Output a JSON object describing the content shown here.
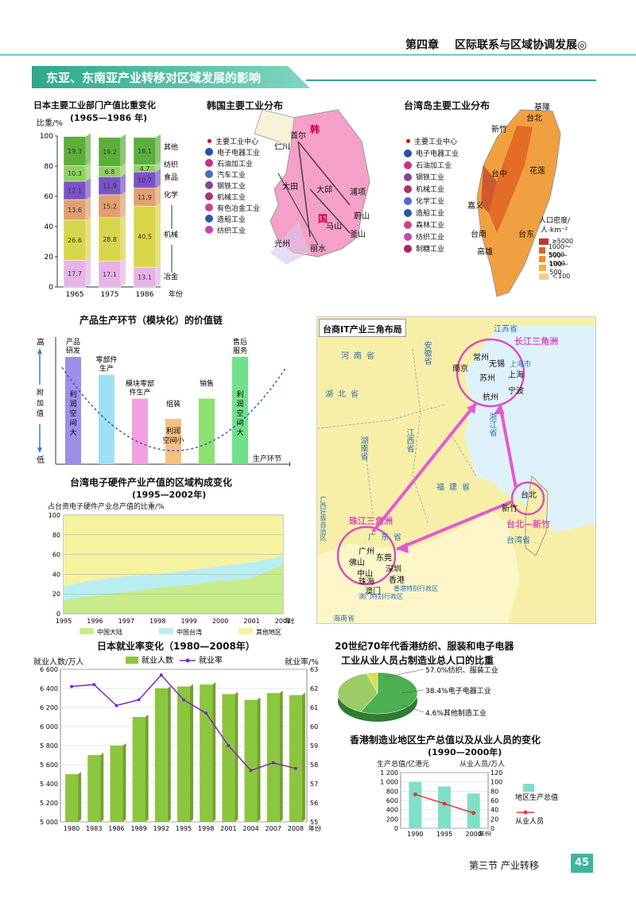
{
  "header": {
    "chapter": "第四章",
    "chapter_title": "区际联系与区域协调发展◎",
    "section_banner": "东亚、东南亚产业转移对区域发展的影响"
  },
  "footer": {
    "section": "第三节  产业转移",
    "page": "45"
  },
  "japan_industry_chart": {
    "title": "日本主要工业部门产值比重变化",
    "subtitle": "(1965—1986 年)",
    "ylabel": "比重/%",
    "xunit": "年份",
    "categories": [
      "1965",
      "1975",
      "1986"
    ],
    "layer_labels": [
      "冶金",
      "机械",
      "化学",
      "食品",
      "纺织",
      "其他"
    ],
    "layer_colors": [
      "#e6b3e6",
      "#d7d64a",
      "#e0a070",
      "#7a52c7",
      "#8fd060",
      "#5cae3a"
    ],
    "values": [
      [
        17.7,
        26.6,
        13.6,
        12.1,
        10.3,
        19.3
      ],
      [
        17.1,
        28.8,
        15.2,
        11.9,
        6.8,
        19.2
      ],
      [
        13.1,
        40.5,
        11.9,
        10.7,
        4.7,
        18.1
      ]
    ],
    "yticks": [
      "0",
      "20",
      "40",
      "60",
      "80",
      "100"
    ]
  },
  "korea_map": {
    "title": "韩国主要工业分布",
    "legend": [
      "主要工业中心",
      "电子电器工业",
      "石油加工业",
      "汽车工业",
      "钢铁工业",
      "机械工业",
      "有色冶金工业",
      "造船工业",
      "纺织工业"
    ],
    "places": [
      "首尔",
      "仁川",
      "浦项",
      "大田",
      "大邱",
      "光州",
      "马山",
      "蔚山",
      "釜山",
      "丽水",
      "韩",
      "国"
    ]
  },
  "taiwan_map": {
    "title": "台湾岛主要工业分布",
    "legend": [
      "主要工业中心",
      "电子电器工业",
      "石油加工业",
      "钢铁工业",
      "机械工业",
      "化学工业",
      "造船工业",
      "森林工业",
      "纺织工业",
      "制糖工业"
    ],
    "places": [
      "基隆",
      "台北",
      "新竹",
      "台中",
      "花莲",
      "嘉义",
      "台南",
      "台东",
      "高雄"
    ],
    "density_title": "人口密度/",
    "density_unit": "人·km⁻²",
    "density_classes": [
      {
        "label": "≥5000",
        "color": "#c0392b"
      },
      {
        "label": "1000～5000",
        "color": "#e06020"
      },
      {
        "label": "500～1000",
        "color": "#f08c30"
      },
      {
        "label": "100～500",
        "color": "#f5b050"
      },
      {
        "label": "＜100",
        "color": "#f8d080"
      }
    ]
  },
  "value_chain": {
    "title": "产品生产环节（模块化）的价值链",
    "y_high": "高",
    "y_low": "低",
    "y_label": "附加值",
    "x_label": "生产环节",
    "stages": [
      {
        "label": "产品研发",
        "inner": "利润空间大",
        "level": 0.9,
        "color": "#9b8fe8"
      },
      {
        "label": "零部件生产",
        "inner": "",
        "level": 0.75,
        "color": "#9fe0f5"
      },
      {
        "label": "模块零部件生产",
        "inner": "",
        "level": 0.55,
        "color": "#f2a0e0"
      },
      {
        "label": "组装",
        "inner": "利润空间小",
        "level": 0.38,
        "color": "#f5c080"
      },
      {
        "label": "销售",
        "inner": "",
        "level": 0.55,
        "color": "#8ee070"
      },
      {
        "label": "售后服务",
        "inner": "利润空间大",
        "level": 0.9,
        "color": "#70e08a"
      }
    ]
  },
  "taiwan_share_chart": {
    "title": "台湾电子硬件产业产值的区域构成变化",
    "subtitle": "(1995—2002年)",
    "ylabel": "占台资电子硬件产业总产值的比重/%",
    "xunit": "年份",
    "years": [
      "1995",
      "1996",
      "1997",
      "1998",
      "1999",
      "2000",
      "2001",
      "2002"
    ],
    "series": [
      {
        "name": "中国大陆",
        "color": "#c8ec8c",
        "values": [
          14,
          18,
          22,
          26,
          29,
          33,
          36,
          50
        ]
      },
      {
        "name": "中国台湾",
        "color": "#b8eef0",
        "values": [
          28,
          34,
          38,
          40,
          44,
          48,
          52,
          58
        ]
      },
      {
        "name": "其他地区",
        "color": "#f5f2a0",
        "values": [
          100,
          100,
          100,
          100,
          100,
          100,
          100,
          100
        ]
      }
    ],
    "yticks": [
      "0",
      "20",
      "40",
      "60",
      "80",
      "100"
    ]
  },
  "it_triangle_map": {
    "title": "台商IT产业三角布局",
    "regions": [
      "长江三角洲",
      "珠江三角洲",
      "台北—新竹"
    ],
    "provinces": [
      "河南省",
      "安徽省",
      "江苏省",
      "湖北省",
      "浙江省",
      "江西省",
      "湖南省",
      "福建省",
      "广东省",
      "广西壮族自治区",
      "台湾省",
      "海南省"
    ],
    "cities": [
      "南京",
      "常州",
      "无锡",
      "苏州",
      "上海",
      "上海市",
      "杭州",
      "宁波",
      "台北",
      "新竹",
      "广州",
      "东莞",
      "佛山",
      "深圳",
      "中山",
      "珠海",
      "香港",
      "澳门"
    ],
    "notes": [
      "香港特别行政区",
      "澳门特别行政区"
    ]
  },
  "japan_employment_chart": {
    "title": "日本就业率变化（1980—2008年）",
    "left_label": "就业人数/万人",
    "right_label": "就业率/%",
    "legend_bar": "就业人数",
    "legend_line": "就业率",
    "xunit": "年份",
    "years": [
      "1980",
      "1983",
      "1986",
      "1989",
      "1992",
      "1995",
      "1998",
      "2001",
      "2004",
      "2007",
      "2008"
    ],
    "employed": [
      5500,
      5700,
      5800,
      6100,
      6400,
      6420,
      6440,
      6340,
      6280,
      6350,
      6330
    ],
    "rate": [
      62.1,
      62.2,
      61.1,
      61.4,
      62.7,
      61.4,
      60.7,
      59.0,
      57.7,
      58.1,
      57.8
    ],
    "left_ticks": [
      "5 000",
      "5 200",
      "5 400",
      "5 600",
      "5 800",
      "6 000",
      "6 200",
      "6 400",
      "6 600"
    ],
    "right_ticks": [
      "55",
      "56",
      "57",
      "58",
      "59",
      "60",
      "61",
      "62",
      "63"
    ],
    "bar_color": "#8cc63f",
    "line_color": "#7b2cbf"
  },
  "hk_pie": {
    "title_line1": "20世纪70年代香港纺织、服装和电子电器",
    "title_line2": "工业从业人员占制造业总人口的比重",
    "slices": [
      {
        "label": "57.0%纺织、服装工业",
        "value": 57.0,
        "color": "#4caf50"
      },
      {
        "label": "38.4%电子电器工业",
        "value": 38.4,
        "color": "#9ccc65"
      },
      {
        "label": "4.6%其他制造工业",
        "value": 4.6,
        "color": "#d4e157"
      }
    ]
  },
  "hk_manufacturing_chart": {
    "title": "香港制造业地区生产总值以及从业人员的变化",
    "subtitle": "(1990—2000年)",
    "left_label": "生产总值/亿港元",
    "right_label": "从业人员/万人",
    "years": [
      "1990",
      "1995",
      "2000"
    ],
    "gdp": [
      1000,
      900,
      750
    ],
    "workers": [
      73,
      53,
      33
    ],
    "left_ticks": [
      "0",
      "200",
      "400",
      "600",
      "800",
      "1 000",
      "1 200"
    ],
    "right_ticks": [
      "0",
      "20",
      "40",
      "60",
      "80",
      "100",
      "120"
    ],
    "legend_bar": "地区生产总值",
    "legend_line": "从业人员",
    "xunit": "年份"
  }
}
